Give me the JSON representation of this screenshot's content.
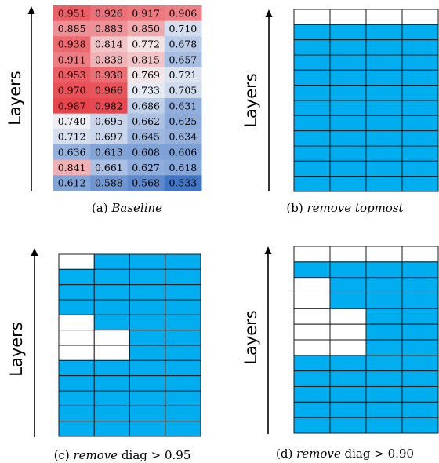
{
  "chart_data": [
    {
      "type": "heatmap",
      "panel": "a",
      "axis_label": "Layers",
      "caption_prefix": "(a) ",
      "caption_italic": "Baseline",
      "caption_suffix": "",
      "rows": [
        [
          0.951,
          0.926,
          0.917,
          0.906
        ],
        [
          0.885,
          0.883,
          0.85,
          0.71
        ],
        [
          0.938,
          0.814,
          0.772,
          0.678
        ],
        [
          0.911,
          0.838,
          0.815,
          0.657
        ],
        [
          0.953,
          0.93,
          0.769,
          0.721
        ],
        [
          0.97,
          0.966,
          0.733,
          0.705
        ],
        [
          0.987,
          0.982,
          0.686,
          0.631
        ],
        [
          0.74,
          0.695,
          0.662,
          0.625
        ],
        [
          0.712,
          0.697,
          0.645,
          0.634
        ],
        [
          0.636,
          0.613,
          0.608,
          0.606
        ],
        [
          0.841,
          0.661,
          0.627,
          0.618
        ],
        [
          0.612,
          0.588,
          0.568,
          0.533
        ]
      ],
      "colors": {
        "high": "#e8424a",
        "mid": "#f4f4f6",
        "low": "#3f74c4"
      }
    },
    {
      "type": "heatmap",
      "panel": "b",
      "axis_label": "Layers",
      "caption_prefix": "(b) ",
      "caption_italic": "remove topmost",
      "caption_suffix": "",
      "removed_mask": [
        [
          1,
          1,
          1,
          1
        ],
        [
          0,
          0,
          0,
          0
        ],
        [
          0,
          0,
          0,
          0
        ],
        [
          0,
          0,
          0,
          0
        ],
        [
          0,
          0,
          0,
          0
        ],
        [
          0,
          0,
          0,
          0
        ],
        [
          0,
          0,
          0,
          0
        ],
        [
          0,
          0,
          0,
          0
        ],
        [
          0,
          0,
          0,
          0
        ],
        [
          0,
          0,
          0,
          0
        ],
        [
          0,
          0,
          0,
          0
        ],
        [
          0,
          0,
          0,
          0
        ]
      ],
      "colors": {
        "kept": "#00adef",
        "removed": "#ffffff"
      }
    },
    {
      "type": "heatmap",
      "panel": "c",
      "axis_label": "Layers",
      "caption_prefix": "(c) ",
      "caption_italic": "remove",
      "caption_suffix": " diag > 0.95",
      "removed_mask": [
        [
          1,
          0,
          0,
          0
        ],
        [
          0,
          0,
          0,
          0
        ],
        [
          0,
          0,
          0,
          0
        ],
        [
          0,
          0,
          0,
          0
        ],
        [
          1,
          0,
          0,
          0
        ],
        [
          1,
          1,
          0,
          0
        ],
        [
          1,
          1,
          0,
          0
        ],
        [
          0,
          0,
          0,
          0
        ],
        [
          0,
          0,
          0,
          0
        ],
        [
          0,
          0,
          0,
          0
        ],
        [
          0,
          0,
          0,
          0
        ],
        [
          0,
          0,
          0,
          0
        ]
      ],
      "colors": {
        "kept": "#00adef",
        "removed": "#ffffff"
      }
    },
    {
      "type": "heatmap",
      "panel": "d",
      "axis_label": "Layers",
      "caption_prefix": "(d) ",
      "caption_italic": "remove",
      "caption_suffix": " diag > 0.90",
      "removed_mask": [
        [
          1,
          1,
          1,
          1
        ],
        [
          0,
          0,
          0,
          0
        ],
        [
          1,
          0,
          0,
          0
        ],
        [
          1,
          0,
          0,
          0
        ],
        [
          1,
          1,
          0,
          0
        ],
        [
          1,
          1,
          0,
          0
        ],
        [
          1,
          1,
          0,
          0
        ],
        [
          0,
          0,
          0,
          0
        ],
        [
          0,
          0,
          0,
          0
        ],
        [
          0,
          0,
          0,
          0
        ],
        [
          0,
          0,
          0,
          0
        ],
        [
          0,
          0,
          0,
          0
        ]
      ],
      "colors": {
        "kept": "#00adef",
        "removed": "#ffffff"
      }
    }
  ]
}
